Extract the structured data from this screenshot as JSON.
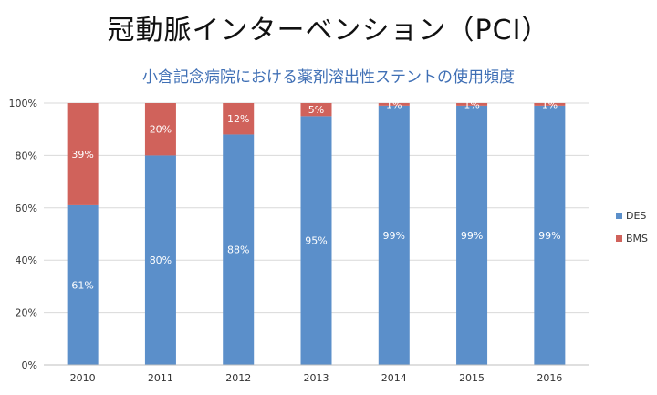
{
  "header": {
    "title": "冠動脈インターベンション（PCI）",
    "subtitle": "小倉記念病院における薬剤溶出性ステントの使用頻度"
  },
  "chart_data": {
    "type": "bar",
    "stacked": true,
    "title": "小倉記念病院における薬剤溶出性ステントの使用頻度",
    "categories": [
      "2010",
      "2011",
      "2012",
      "2013",
      "2014",
      "2015",
      "2016"
    ],
    "series": [
      {
        "name": "DES",
        "color": "#5b8fca",
        "values": [
          61,
          80,
          88,
          95,
          99,
          99,
          99
        ],
        "labels": [
          "61%",
          "80%",
          "88%",
          "95%",
          "99%",
          "99%",
          "99%"
        ]
      },
      {
        "name": "BMS",
        "color": "#d0625b",
        "values": [
          39,
          20,
          12,
          5,
          1,
          1,
          1
        ],
        "labels": [
          "39%",
          "20%",
          "12%",
          "5%",
          "1%",
          "1%",
          "1%"
        ]
      }
    ],
    "y_ticks": [
      "0%",
      "20%",
      "40%",
      "60%",
      "80%",
      "100%"
    ],
    "ylim": [
      0,
      100
    ],
    "grid": true,
    "legend_position": "right"
  }
}
